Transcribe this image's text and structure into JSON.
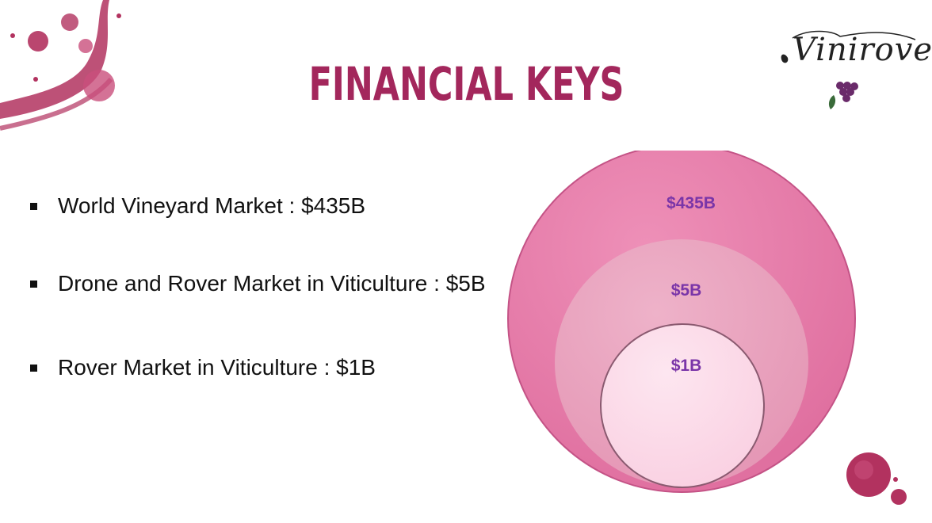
{
  "slide": {
    "title": "FINANCIAL KEYS",
    "logo_text": "Vinirover"
  },
  "bullets": [
    {
      "text": "World Vineyard Market : $435B"
    },
    {
      "text": "Drone and Rover Market in Viticulture : $5B"
    },
    {
      "text": "Rover Market in Viticulture : $1B"
    }
  ],
  "diagram": {
    "rings": [
      {
        "label": "$435B",
        "color": "#e67aa8"
      },
      {
        "label": "$5B",
        "color": "#e8a1bd"
      },
      {
        "label": "$1B",
        "color": "#fbdaea"
      }
    ],
    "label_color": "#7a35a8"
  },
  "decor": {
    "stain_color": "#b2325f"
  }
}
